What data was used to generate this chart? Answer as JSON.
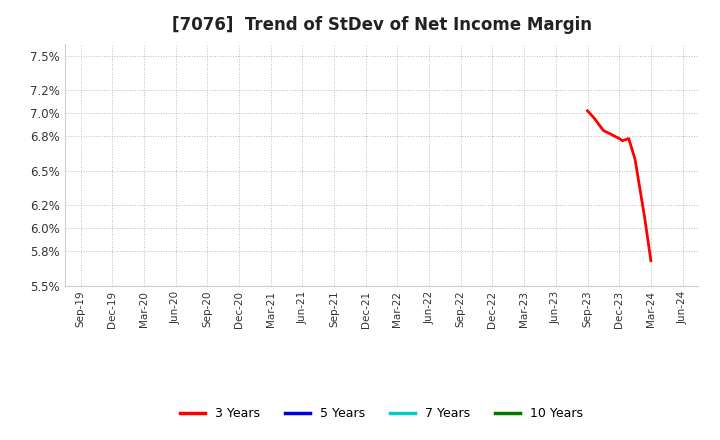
{
  "title": "[7076]  Trend of StDev of Net Income Margin",
  "ylim": [
    0.055,
    0.076
  ],
  "yticks": [
    0.055,
    0.058,
    0.06,
    0.062,
    0.065,
    0.068,
    0.07,
    0.072,
    0.075
  ],
  "ytick_labels": [
    "5.5%",
    "5.8%",
    "6.0%",
    "6.2%",
    "6.5%",
    "6.8%",
    "7.0%",
    "7.2%",
    "7.5%"
  ],
  "background_color": "#ffffff",
  "plot_bg_color": "#ffffff",
  "grid_color": "#bbbbbb",
  "line_3y_color": "#ff0000",
  "line_5y_color": "#0000dd",
  "line_7y_color": "#00cccc",
  "line_10y_color": "#007700",
  "legend_labels": [
    "3 Years",
    "5 Years",
    "7 Years",
    "10 Years"
  ],
  "title_fontsize": 12,
  "title_fontweight": "bold",
  "x_dates": [
    "Sep-19",
    "Dec-19",
    "Mar-20",
    "Jun-20",
    "Sep-20",
    "Dec-20",
    "Mar-21",
    "Jun-21",
    "Sep-21",
    "Dec-21",
    "Mar-22",
    "Jun-22",
    "Sep-22",
    "Dec-22",
    "Mar-23",
    "Jun-23",
    "Sep-23",
    "Dec-23",
    "Mar-24",
    "Jun-24"
  ],
  "x_positions": [
    0,
    1,
    2,
    3,
    4,
    5,
    6,
    7,
    8,
    9,
    10,
    11,
    12,
    13,
    14,
    15,
    16,
    17,
    18,
    19
  ],
  "line3y_x": [
    16.0,
    16.2,
    16.5,
    17.0,
    17.1,
    17.3,
    17.5,
    17.8,
    18.0
  ],
  "line3y_y": [
    0.0702,
    0.0696,
    0.0685,
    0.0678,
    0.0676,
    0.0678,
    0.066,
    0.061,
    0.0572
  ]
}
